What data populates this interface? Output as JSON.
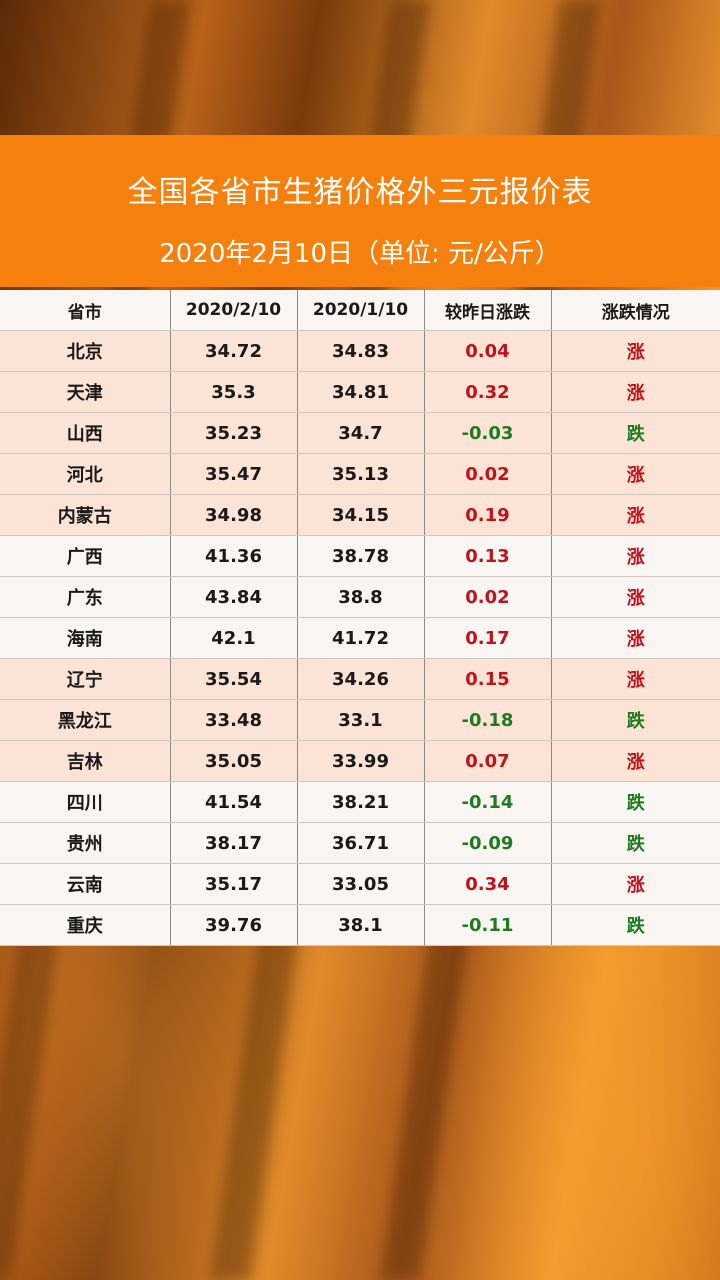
{
  "header": {
    "title": "全国各省市生猪价格外三元报价表",
    "subtitle": "2020年2月10日（单位: 元/公斤）"
  },
  "table": {
    "columns": [
      "省市",
      "2020/2/10",
      "2020/1/10",
      "较昨日涨跌",
      "涨跌情况"
    ],
    "rows": [
      {
        "province": "北京",
        "price_new": "34.72",
        "price_old": "34.83",
        "change": "0.04",
        "trend": "涨",
        "dir": "up",
        "highlight": true
      },
      {
        "province": "天津",
        "price_new": "35.3",
        "price_old": "34.81",
        "change": "0.32",
        "trend": "涨",
        "dir": "up",
        "highlight": true
      },
      {
        "province": "山西",
        "price_new": "35.23",
        "price_old": "34.7",
        "change": "-0.03",
        "trend": "跌",
        "dir": "down",
        "highlight": true
      },
      {
        "province": "河北",
        "price_new": "35.47",
        "price_old": "35.13",
        "change": "0.02",
        "trend": "涨",
        "dir": "up",
        "highlight": true
      },
      {
        "province": "内蒙古",
        "price_new": "34.98",
        "price_old": "34.15",
        "change": "0.19",
        "trend": "涨",
        "dir": "up",
        "highlight": true
      },
      {
        "province": "广西",
        "price_new": "41.36",
        "price_old": "38.78",
        "change": "0.13",
        "trend": "涨",
        "dir": "up",
        "highlight": false
      },
      {
        "province": "广东",
        "price_new": "43.84",
        "price_old": "38.8",
        "change": "0.02",
        "trend": "涨",
        "dir": "up",
        "highlight": false
      },
      {
        "province": "海南",
        "price_new": "42.1",
        "price_old": "41.72",
        "change": "0.17",
        "trend": "涨",
        "dir": "up",
        "highlight": false
      },
      {
        "province": "辽宁",
        "price_new": "35.54",
        "price_old": "34.26",
        "change": "0.15",
        "trend": "涨",
        "dir": "up",
        "highlight": true
      },
      {
        "province": "黑龙江",
        "price_new": "33.48",
        "price_old": "33.1",
        "change": "-0.18",
        "trend": "跌",
        "dir": "down",
        "highlight": true
      },
      {
        "province": "吉林",
        "price_new": "35.05",
        "price_old": "33.99",
        "change": "0.07",
        "trend": "涨",
        "dir": "up",
        "highlight": true
      },
      {
        "province": "四川",
        "price_new": "41.54",
        "price_old": "38.21",
        "change": "-0.14",
        "trend": "跌",
        "dir": "down",
        "highlight": false
      },
      {
        "province": "贵州",
        "price_new": "38.17",
        "price_old": "36.71",
        "change": "-0.09",
        "trend": "跌",
        "dir": "down",
        "highlight": false
      },
      {
        "province": "云南",
        "price_new": "35.17",
        "price_old": "33.05",
        "change": "0.34",
        "trend": "涨",
        "dir": "up",
        "highlight": false
      },
      {
        "province": "重庆",
        "price_new": "39.76",
        "price_old": "38.1",
        "change": "-0.11",
        "trend": "跌",
        "dir": "down",
        "highlight": false
      }
    ]
  },
  "colors": {
    "banner": "#f5800e",
    "up": "#c0121a",
    "down": "#1e7b1e",
    "row_highlight": "#fbe4d6"
  }
}
